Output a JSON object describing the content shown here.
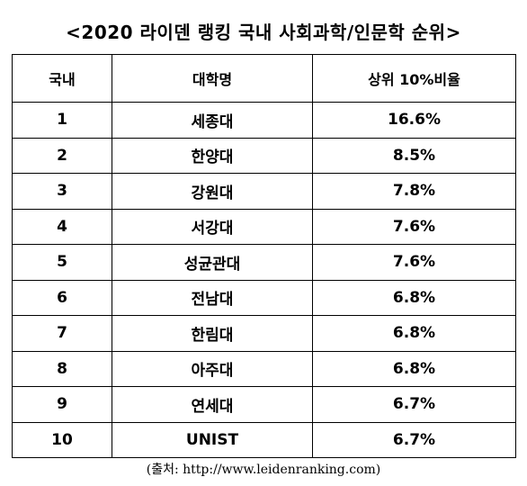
{
  "title": "<2020 라이덴 랭킹 국내 사회과학/인문학 순위>",
  "table": {
    "headers": [
      "국내",
      "대학명",
      "상위 10%비율"
    ],
    "rows": [
      {
        "rank": "1",
        "name": "세종대",
        "ratio": "16.6%"
      },
      {
        "rank": "2",
        "name": "한양대",
        "ratio": "8.5%"
      },
      {
        "rank": "3",
        "name": "강원대",
        "ratio": "7.8%"
      },
      {
        "rank": "4",
        "name": "서강대",
        "ratio": "7.6%"
      },
      {
        "rank": "5",
        "name": "성균관대",
        "ratio": "7.6%"
      },
      {
        "rank": "6",
        "name": "전남대",
        "ratio": "6.8%"
      },
      {
        "rank": "7",
        "name": "한림대",
        "ratio": "6.8%"
      },
      {
        "rank": "8",
        "name": "아주대",
        "ratio": "6.8%"
      },
      {
        "rank": "9",
        "name": "연세대",
        "ratio": "6.7%"
      },
      {
        "rank": "10",
        "name": "UNIST",
        "ratio": "6.7%"
      }
    ]
  },
  "source": "(출처: http://www.leidenranking.com)"
}
